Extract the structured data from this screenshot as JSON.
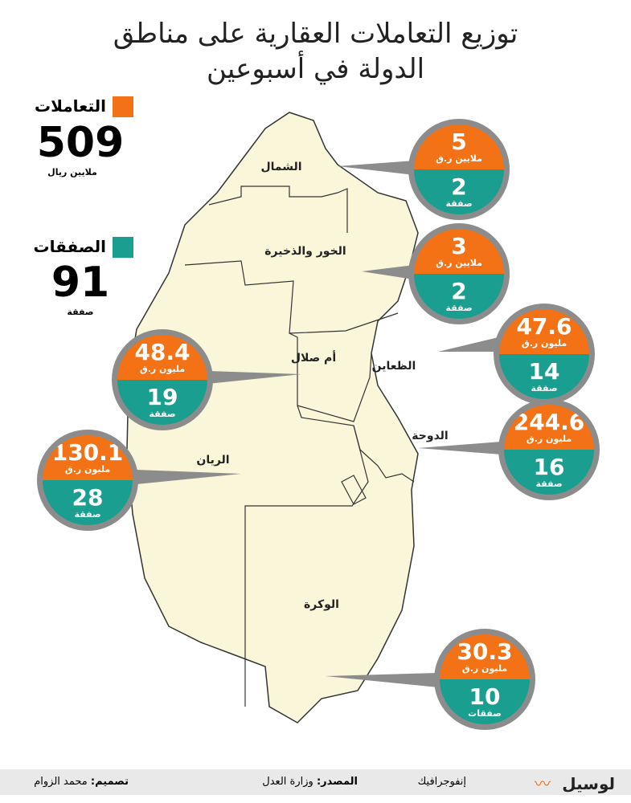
{
  "header": {
    "title_lines": [
      "توزيع التعاملات العقارية على مناطق",
      "الدولة في أسبوعين"
    ]
  },
  "legend": {
    "transactions": {
      "label": "التعاملات",
      "value": 509,
      "unit": "ملايين ريال"
    },
    "deals": {
      "label": "الصفقات",
      "value": 91,
      "unit": "صفقة"
    }
  },
  "regions": [
    {
      "name": "الشمال",
      "value": 5,
      "value_unit": "ملايين ر.ق",
      "deals": 2,
      "deals_unit": "صفقة"
    },
    {
      "name": "الخور والذخيرة",
      "value": 3,
      "value_unit": "ملايين ر.ق",
      "deals": 2,
      "deals_unit": "صفقة"
    },
    {
      "name": "الظعاين",
      "value": 47.6,
      "value_unit": "مليون ر.ق",
      "deals": 14,
      "deals_unit": "صفقة"
    },
    {
      "name": "أم صلال",
      "value": 48.4,
      "value_unit": "مليون ر.ق",
      "deals": 19,
      "deals_unit": "صفقة"
    },
    {
      "name": "الدوحة",
      "value": 244.6,
      "value_unit": "مليون ر.ق",
      "deals": 16,
      "deals_unit": "صفقة"
    },
    {
      "name": "الريان",
      "value": 130.1,
      "value_unit": "مليون ر.ق",
      "deals": 28,
      "deals_unit": "صفقة"
    },
    {
      "name": "الوكرة",
      "value": 30.3,
      "value_unit": "مليون ر.ق",
      "deals": 10,
      "deals_unit": "صفقات"
    }
  ],
  "footer": {
    "design_label": "تصميم:",
    "designer": "محمد الزوام",
    "source_label": "المصدر:",
    "source": "وزارة العدل",
    "kind": "إنفوجرافيك",
    "brand": "لوسيل"
  }
}
